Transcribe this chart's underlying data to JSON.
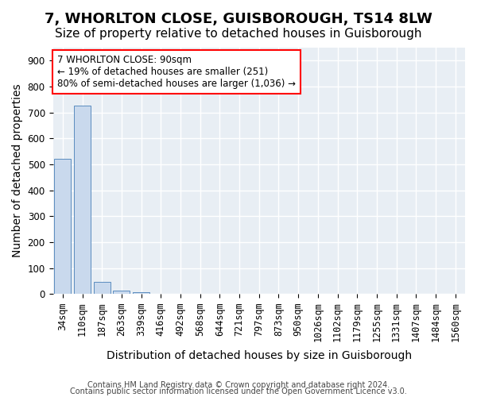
{
  "title": "7, WHORLTON CLOSE, GUISBOROUGH, TS14 8LW",
  "subtitle": "Size of property relative to detached houses in Guisborough",
  "xlabel": "Distribution of detached houses by size in Guisborough",
  "ylabel": "Number of detached properties",
  "categories": [
    "34sqm",
    "110sqm",
    "187sqm",
    "263sqm",
    "339sqm",
    "416sqm",
    "492sqm",
    "568sqm",
    "644sqm",
    "721sqm",
    "797sqm",
    "873sqm",
    "950sqm",
    "1026sqm",
    "1102sqm",
    "1179sqm",
    "1255sqm",
    "1331sqm",
    "1407sqm",
    "1484sqm",
    "1560sqm"
  ],
  "values": [
    521,
    727,
    46,
    12,
    8,
    0,
    0,
    0,
    0,
    0,
    0,
    0,
    0,
    0,
    0,
    0,
    0,
    0,
    0,
    0,
    0
  ],
  "bar_color": "#c9d9ed",
  "bar_edge_color": "#5b8cbf",
  "highlight_bar_index": 1,
  "highlight_color": "#c9d9ed",
  "highlight_edge_color": "#5b8cbf",
  "annotation_box_text": "7 WHORLTON CLOSE: 90sqm\n← 19% of detached houses are smaller (251)\n80% of semi-detached houses are larger (1,036) →",
  "annotation_box_color": "white",
  "annotation_box_edge_color": "red",
  "footer_line1": "Contains HM Land Registry data © Crown copyright and database right 2024.",
  "footer_line2": "Contains public sector information licensed under the Open Government Licence v3.0.",
  "ylim": [
    0,
    950
  ],
  "yticks": [
    0,
    100,
    200,
    300,
    400,
    500,
    600,
    700,
    800,
    900
  ],
  "background_color": "#e8eef4",
  "grid_color": "white",
  "title_fontsize": 13,
  "subtitle_fontsize": 11,
  "tick_fontsize": 8.5,
  "label_fontsize": 10
}
